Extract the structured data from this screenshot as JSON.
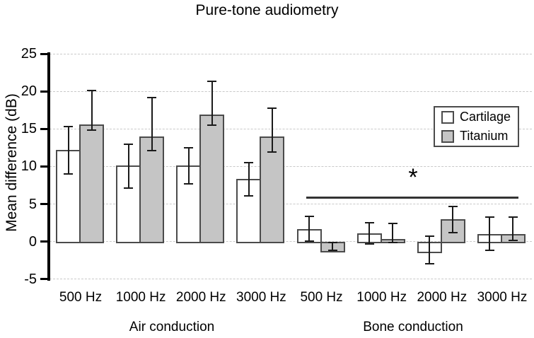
{
  "title": "Pure-tone audiometry",
  "y_axis": {
    "label": "Mean difference (dB)",
    "ticks": [
      25,
      20,
      15,
      10,
      5,
      0,
      -5
    ],
    "ylim": [
      -5,
      25
    ]
  },
  "x_axis": {
    "group_labels": [
      "Air conduction",
      "Bone conduction"
    ]
  },
  "legend": {
    "items": [
      {
        "label": "Cartilage",
        "fill": "#ffffff"
      },
      {
        "label": "Titanium",
        "fill": "#c5c5c5"
      }
    ]
  },
  "significance": {
    "symbol": "*",
    "y_dB": 5.9,
    "spans": "Bone conduction"
  },
  "colors": {
    "bar_border": "#4b4b4b",
    "error_bar": "#1a1a1a",
    "gridline": "#c9c9c9",
    "axis": "#000000",
    "sig_line": "#333333",
    "cartilage_fill": "#ffffff",
    "titanium_fill": "#c5c5c5"
  },
  "chart_data": {
    "type": "bar",
    "title": "Pure-tone audiometry",
    "ylabel": "Mean difference (dB)",
    "ylim": [
      -5,
      25
    ],
    "grid": "horizontal dashed every 5 dB",
    "legend_position": "upper right",
    "categories": [
      "500 Hz",
      "1000 Hz",
      "2000 Hz",
      "3000 Hz",
      "500 Hz",
      "1000 Hz",
      "2000 Hz",
      "3000 Hz"
    ],
    "category_groups": [
      "Air conduction",
      "Air conduction",
      "Air conduction",
      "Air conduction",
      "Bone conduction",
      "Bone conduction",
      "Bone conduction",
      "Bone conduction"
    ],
    "series": [
      {
        "name": "Cartilage",
        "fill": "#ffffff",
        "values": [
          12.2,
          10.1,
          10.1,
          8.4,
          1.7,
          1.1,
          -1.3,
          1.0
        ],
        "whisker_hi": [
          15.3,
          13.0,
          12.5,
          10.5,
          3.4,
          2.5,
          0.7,
          3.3
        ],
        "whisker_lo": [
          9.0,
          7.1,
          7.7,
          6.1,
          0.1,
          -0.3,
          -2.9,
          -1.1
        ]
      },
      {
        "name": "Titanium",
        "fill": "#c5c5c5",
        "values": [
          15.6,
          14.0,
          16.9,
          14.0,
          -1.2,
          0.4,
          3.0,
          1.0
        ],
        "whisker_hi": [
          20.1,
          19.2,
          21.3,
          17.8,
          -0.1,
          2.4,
          4.7,
          3.3
        ],
        "whisker_lo": [
          14.8,
          12.1,
          15.5,
          11.9,
          -1.1,
          -0.1,
          1.2,
          0.2
        ]
      }
    ],
    "significance_bar": {
      "symbol": "*",
      "y_dB": 5.9,
      "over_categories": [
        "500 Hz",
        "1000 Hz",
        "2000 Hz",
        "3000 Hz"
      ],
      "group": "Bone conduction"
    }
  }
}
